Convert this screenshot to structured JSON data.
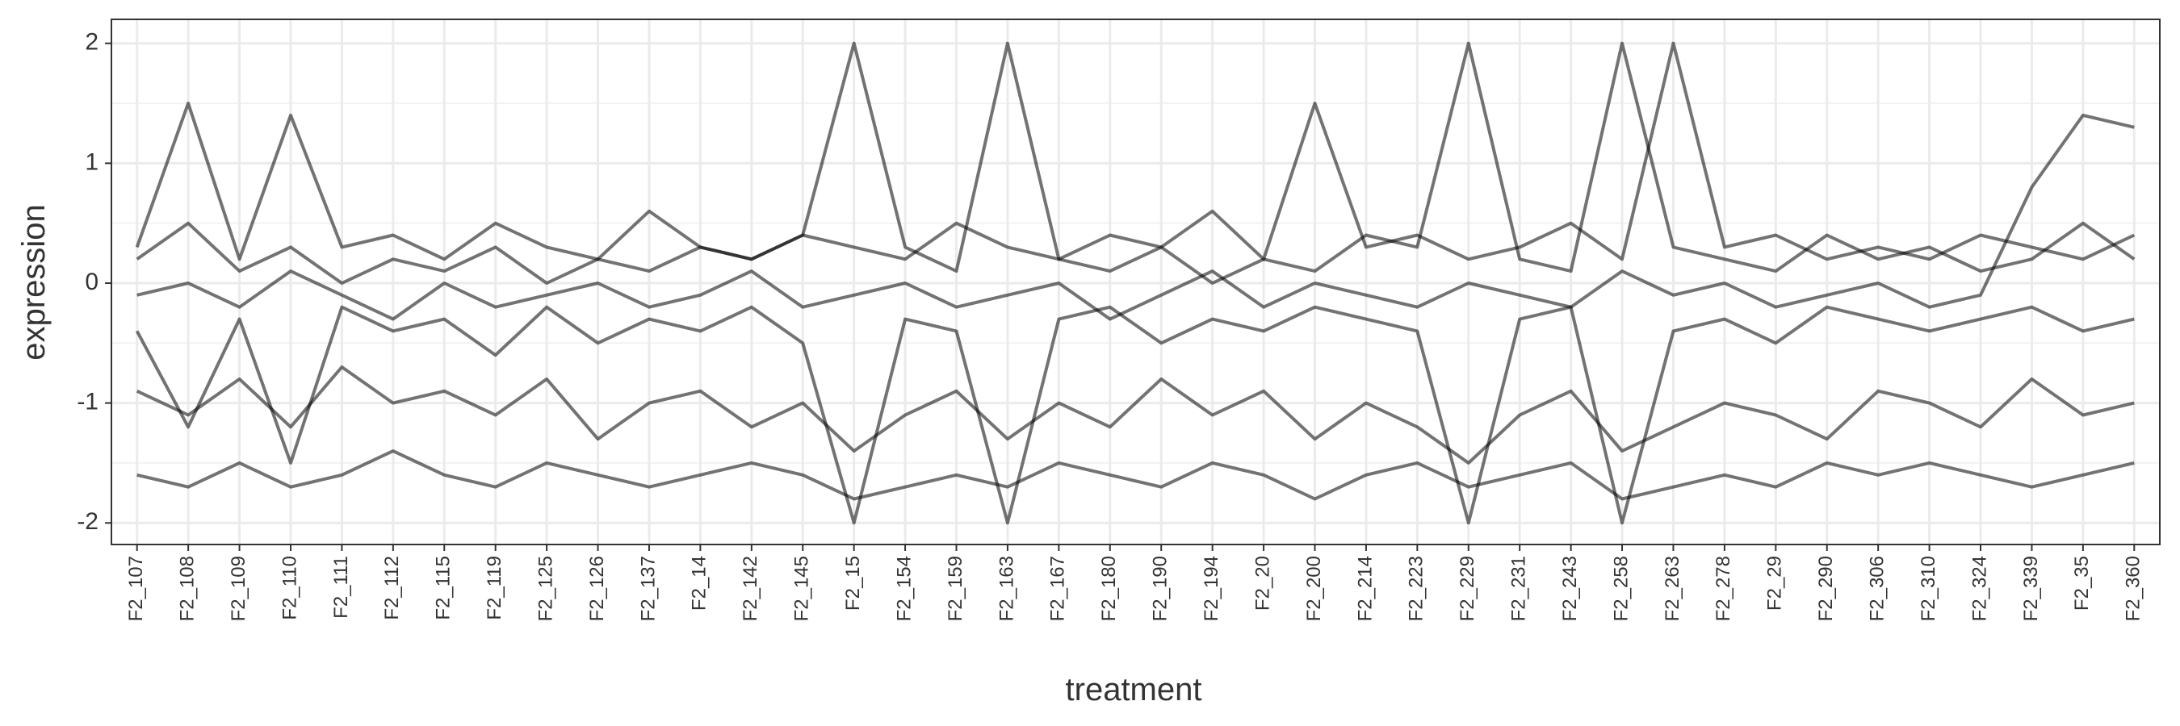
{
  "chart_data": {
    "type": "line",
    "xlabel": "treatment",
    "ylabel": "expression",
    "categories": [
      "F2_107",
      "F2_108",
      "F2_109",
      "F2_110",
      "F2_111",
      "F2_112",
      "F2_115",
      "F2_119",
      "F2_125",
      "F2_126",
      "F2_137",
      "F2_14",
      "F2_142",
      "F2_145",
      "F2_15",
      "F2_154",
      "F2_159",
      "F2_163",
      "F2_167",
      "F2_180",
      "F2_190",
      "F2_194",
      "F2_20",
      "F2_200",
      "F2_214",
      "F2_223",
      "F2_229",
      "F2_231",
      "F2_243",
      "F2_258",
      "F2_263",
      "F2_278",
      "F2_29",
      "F2_290",
      "F2_306",
      "F2_310",
      "F2_324",
      "F2_339",
      "F2_35",
      "F2_360"
    ],
    "series": [
      {
        "color": "#000000",
        "values": [
          0.2,
          0.5,
          0.1,
          0.3,
          0.0,
          0.2,
          0.1,
          0.3,
          0.0,
          0.2,
          0.1,
          0.3,
          0.2,
          0.4,
          2.0,
          0.3,
          0.1,
          2.0,
          0.2,
          0.1,
          0.3,
          0.0,
          0.2,
          0.1,
          0.4,
          0.3,
          2.0,
          0.2,
          0.1,
          2.0,
          0.3,
          0.2,
          0.1,
          0.4,
          0.2,
          0.3,
          0.1,
          0.2,
          0.5,
          0.2
        ]
      },
      {
        "color": "#000000",
        "values": [
          -0.4,
          -1.2,
          -0.3,
          -1.5,
          -0.2,
          -0.4,
          -0.3,
          -0.6,
          -0.2,
          -0.5,
          -0.3,
          -0.4,
          -0.2,
          -0.5,
          -2.0,
          -0.3,
          -0.4,
          -2.0,
          -0.3,
          -0.2,
          -0.5,
          -0.3,
          -0.4,
          -0.2,
          -0.3,
          -0.4,
          -2.0,
          -0.3,
          -0.2,
          -2.0,
          -0.4,
          -0.3,
          -0.5,
          -0.2,
          -0.3,
          -0.4,
          -0.3,
          -0.2,
          -0.4,
          -0.3
        ]
      },
      {
        "color": "#000000",
        "values": [
          -1.6,
          -1.7,
          -1.5,
          -1.7,
          -1.6,
          -1.4,
          -1.6,
          -1.7,
          -1.5,
          -1.6,
          -1.7,
          -1.6,
          -1.5,
          -1.6,
          -1.8,
          -1.7,
          -1.6,
          -1.7,
          -1.5,
          -1.6,
          -1.7,
          -1.5,
          -1.6,
          -1.8,
          -1.6,
          -1.5,
          -1.7,
          -1.6,
          -1.5,
          -1.8,
          -1.7,
          -1.6,
          -1.7,
          -1.5,
          -1.6,
          -1.5,
          -1.6,
          -1.7,
          -1.6,
          -1.5
        ]
      },
      {
        "color": "#000000",
        "values": [
          -0.9,
          -1.1,
          -0.8,
          -1.2,
          -0.7,
          -1.0,
          -0.9,
          -1.1,
          -0.8,
          -1.3,
          -1.0,
          -0.9,
          -1.2,
          -1.0,
          -1.4,
          -1.1,
          -0.9,
          -1.3,
          -1.0,
          -1.2,
          -0.8,
          -1.1,
          -0.9,
          -1.3,
          -1.0,
          -1.2,
          -1.5,
          -1.1,
          -0.9,
          -1.4,
          -1.2,
          -1.0,
          -1.1,
          -1.3,
          -0.9,
          -1.0,
          -1.2,
          -0.8,
          -1.1,
          -1.0
        ]
      },
      {
        "color": "#000000",
        "values": [
          0.3,
          1.5,
          0.2,
          1.4,
          0.3,
          0.4,
          0.2,
          0.5,
          0.3,
          0.2,
          0.6,
          0.3,
          0.2,
          0.4,
          0.3,
          0.2,
          0.5,
          0.3,
          0.2,
          0.4,
          0.3,
          0.6,
          0.2,
          1.5,
          0.3,
          0.4,
          0.2,
          0.3,
          0.5,
          0.2,
          2.0,
          0.3,
          0.4,
          0.2,
          0.3,
          0.2,
          0.4,
          0.3,
          0.2,
          0.4
        ]
      },
      {
        "color": "#000000",
        "values": [
          -0.1,
          0.0,
          -0.2,
          0.1,
          -0.1,
          -0.3,
          0.0,
          -0.2,
          -0.1,
          0.0,
          -0.2,
          -0.1,
          0.1,
          -0.2,
          -0.1,
          0.0,
          -0.2,
          -0.1,
          0.0,
          -0.3,
          -0.1,
          0.1,
          -0.2,
          0.0,
          -0.1,
          -0.2,
          0.0,
          -0.1,
          -0.2,
          0.1,
          -0.1,
          0.0,
          -0.2,
          -0.1,
          0.0,
          -0.2,
          -0.1,
          0.8,
          1.4,
          1.3
        ]
      }
    ],
    "ylim": [
      -2.18,
      2.2
    ],
    "yticks": [
      -2,
      -1,
      0,
      1,
      2
    ],
    "grid": true
  }
}
